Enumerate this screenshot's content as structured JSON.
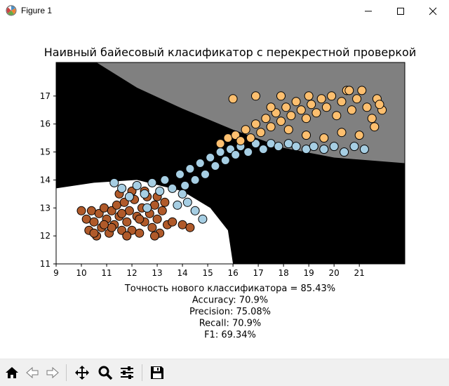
{
  "window": {
    "title": "Figure 1",
    "icons": {
      "app": "matplotlib-icon",
      "minimize": "minimize-icon",
      "maximize": "maximize-icon",
      "close": "close-icon"
    }
  },
  "toolbar": {
    "buttons": [
      {
        "name": "home-button",
        "icon": "home-icon"
      },
      {
        "name": "back-button",
        "icon": "arrow-left-icon"
      },
      {
        "name": "forward-button",
        "icon": "arrow-right-icon"
      },
      {
        "name": "pan-button",
        "icon": "move-icon"
      },
      {
        "name": "zoom-button",
        "icon": "magnifier-icon"
      },
      {
        "name": "configure-subplots-button",
        "icon": "sliders-icon"
      },
      {
        "name": "save-button",
        "icon": "floppy-icon"
      }
    ]
  },
  "chart_data": {
    "type": "scatter",
    "title": "Наивный байесовый класификатор с перекрестной проверкой",
    "xlabel_lines": [
      "Точность нового классификатора = 85.43%",
      "Accuracy: 70.9%",
      "Precision: 75.08%",
      "Recall: 70.9%",
      "F1: 69.34%"
    ],
    "xlim": [
      9,
      22.8
    ],
    "ylim": [
      11,
      18.2
    ],
    "xticks": [
      "9",
      "10",
      "11",
      "12",
      "13",
      "14",
      "15",
      "16",
      "17",
      "18",
      "19",
      "20",
      "21"
    ],
    "yticks": [
      "11",
      "12",
      "13",
      "14",
      "15",
      "16",
      "17"
    ],
    "grid": false,
    "legend": "none",
    "decision_regions": [
      {
        "class": "class-0",
        "color": "#ffffff",
        "description_points": [
          [
            9,
            13.7
          ],
          [
            10.5,
            13.9
          ],
          [
            12.2,
            14.0
          ],
          [
            14.0,
            13.6
          ],
          [
            15.1,
            13.0
          ],
          [
            15.8,
            12.2
          ],
          [
            16.0,
            11.0
          ],
          [
            9,
            11.0
          ]
        ]
      },
      {
        "class": "class-1",
        "color": "#000000"
      },
      {
        "class": "class-2",
        "color": "#808080",
        "description_points": [
          [
            10.6,
            18.2
          ],
          [
            12.2,
            17.3
          ],
          [
            14.0,
            16.55
          ],
          [
            16.0,
            15.8
          ],
          [
            18.0,
            15.15
          ],
          [
            20.0,
            14.8
          ],
          [
            22.8,
            14.6
          ],
          [
            22.8,
            18.2
          ]
        ]
      }
    ],
    "series": [
      {
        "color": "#b05a2a",
        "points": [
          [
            10.0,
            12.9
          ],
          [
            10.2,
            12.6
          ],
          [
            10.3,
            12.2
          ],
          [
            10.4,
            12.9
          ],
          [
            10.5,
            12.5
          ],
          [
            10.6,
            12.0
          ],
          [
            10.7,
            12.8
          ],
          [
            10.8,
            12.3
          ],
          [
            10.9,
            13.0
          ],
          [
            11.0,
            12.6
          ],
          [
            11.1,
            12.1
          ],
          [
            11.2,
            12.9
          ],
          [
            11.3,
            12.4
          ],
          [
            11.4,
            13.1
          ],
          [
            11.5,
            12.7
          ],
          [
            11.6,
            12.2
          ],
          [
            11.7,
            13.2
          ],
          [
            11.8,
            12.5
          ],
          [
            11.9,
            12.9
          ],
          [
            12.0,
            12.2
          ],
          [
            12.1,
            13.3
          ],
          [
            12.2,
            12.7
          ],
          [
            12.3,
            12.1
          ],
          [
            12.4,
            13.0
          ],
          [
            12.5,
            12.5
          ],
          [
            12.6,
            13.4
          ],
          [
            12.7,
            12.8
          ],
          [
            12.8,
            12.3
          ],
          [
            12.9,
            13.1
          ],
          [
            13.0,
            12.6
          ],
          [
            13.1,
            12.1
          ],
          [
            13.2,
            12.9
          ],
          [
            13.3,
            13.2
          ],
          [
            13.4,
            12.4
          ],
          [
            11.5,
            13.5
          ],
          [
            12.0,
            13.6
          ],
          [
            12.5,
            13.6
          ],
          [
            13.0,
            13.4
          ],
          [
            11.2,
            12.3
          ],
          [
            10.5,
            12.1
          ],
          [
            13.6,
            12.5
          ],
          [
            14.0,
            12.4
          ],
          [
            14.3,
            12.3
          ],
          [
            12.3,
            12.6
          ],
          [
            11.8,
            12.0
          ],
          [
            12.9,
            12.0
          ],
          [
            10.9,
            12.4
          ],
          [
            11.6,
            12.8
          ]
        ]
      },
      {
        "color": "#a6cee3",
        "points": [
          [
            11.3,
            13.9
          ],
          [
            11.6,
            13.7
          ],
          [
            11.9,
            13.4
          ],
          [
            12.2,
            13.8
          ],
          [
            12.5,
            13.5
          ],
          [
            12.8,
            13.9
          ],
          [
            13.1,
            13.6
          ],
          [
            13.3,
            14.0
          ],
          [
            13.6,
            13.7
          ],
          [
            13.9,
            14.2
          ],
          [
            14.1,
            13.8
          ],
          [
            14.3,
            14.4
          ],
          [
            14.5,
            14.0
          ],
          [
            14.7,
            14.6
          ],
          [
            14.9,
            14.2
          ],
          [
            15.1,
            14.8
          ],
          [
            15.3,
            14.5
          ],
          [
            15.5,
            15.0
          ],
          [
            15.7,
            14.7
          ],
          [
            15.9,
            15.1
          ],
          [
            16.1,
            14.9
          ],
          [
            16.3,
            15.2
          ],
          [
            16.6,
            15.0
          ],
          [
            16.9,
            15.3
          ],
          [
            17.2,
            15.1
          ],
          [
            17.5,
            15.3
          ],
          [
            17.8,
            15.2
          ],
          [
            18.2,
            15.3
          ],
          [
            18.5,
            15.2
          ],
          [
            18.9,
            15.1
          ],
          [
            19.2,
            15.2
          ],
          [
            19.6,
            15.1
          ],
          [
            20.0,
            15.2
          ],
          [
            20.4,
            15.0
          ],
          [
            20.8,
            15.2
          ],
          [
            21.2,
            15.1
          ],
          [
            14.2,
            13.2
          ],
          [
            14.5,
            12.9
          ],
          [
            14.8,
            12.6
          ],
          [
            14.0,
            13.5
          ],
          [
            13.8,
            13.1
          ],
          [
            12.6,
            13.0
          ]
        ]
      },
      {
        "color": "#fdbf6f",
        "points": [
          [
            15.5,
            15.3
          ],
          [
            15.8,
            15.5
          ],
          [
            16.1,
            15.6
          ],
          [
            16.3,
            15.4
          ],
          [
            16.5,
            15.8
          ],
          [
            16.7,
            15.5
          ],
          [
            16.9,
            16.0
          ],
          [
            17.1,
            15.7
          ],
          [
            17.3,
            16.2
          ],
          [
            17.5,
            15.9
          ],
          [
            17.7,
            16.4
          ],
          [
            17.9,
            16.1
          ],
          [
            18.1,
            16.6
          ],
          [
            18.3,
            16.3
          ],
          [
            18.5,
            16.8
          ],
          [
            18.7,
            16.5
          ],
          [
            18.9,
            16.2
          ],
          [
            19.1,
            16.7
          ],
          [
            19.3,
            16.4
          ],
          [
            19.5,
            16.9
          ],
          [
            19.7,
            16.6
          ],
          [
            19.9,
            17.0
          ],
          [
            20.1,
            16.3
          ],
          [
            20.3,
            16.8
          ],
          [
            20.5,
            17.2
          ],
          [
            20.7,
            16.5
          ],
          [
            20.9,
            16.9
          ],
          [
            21.1,
            17.2
          ],
          [
            21.3,
            16.6
          ],
          [
            21.5,
            16.2
          ],
          [
            21.7,
            16.9
          ],
          [
            21.9,
            16.5
          ],
          [
            16.9,
            17.0
          ],
          [
            17.5,
            16.6
          ],
          [
            18.2,
            15.8
          ],
          [
            18.9,
            15.6
          ],
          [
            19.6,
            15.5
          ],
          [
            20.3,
            15.7
          ],
          [
            21.0,
            15.6
          ],
          [
            21.6,
            15.9
          ],
          [
            16.0,
            16.9
          ],
          [
            17.9,
            17.0
          ],
          [
            19.0,
            17.0
          ],
          [
            20.6,
            17.2
          ],
          [
            21.8,
            16.7
          ]
        ]
      }
    ]
  }
}
